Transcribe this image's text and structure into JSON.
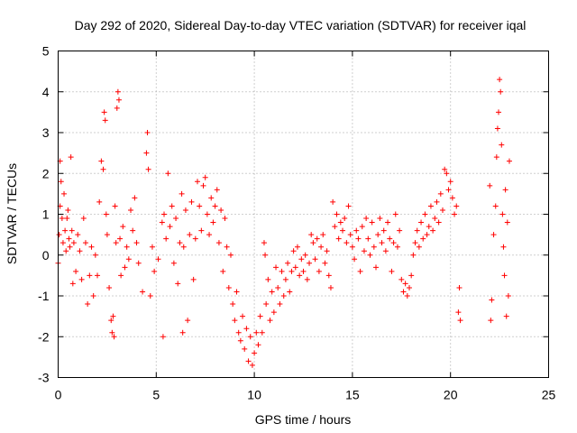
{
  "chart_data": {
    "type": "scatter",
    "title": "Day 292 of 2020, Sidereal Day-to-day VTEC variation (SDTVAR) for receiver iqal",
    "xlabel": "GPS time / hours",
    "ylabel": "SDTVAR / TECUs",
    "xlim": [
      0,
      25
    ],
    "ylim": [
      -3,
      5
    ],
    "xticks": [
      0,
      5,
      10,
      15,
      20,
      25
    ],
    "yticks": [
      -3,
      -2,
      -1,
      0,
      1,
      2,
      3,
      4,
      5
    ],
    "grid": true,
    "marker": "+",
    "color": "#ff0000",
    "series": [
      {
        "name": "SDTVAR",
        "points": [
          [
            0.0,
            -0.2
          ],
          [
            0.05,
            0.5
          ],
          [
            0.1,
            1.2
          ],
          [
            0.1,
            2.3
          ],
          [
            0.15,
            1.8
          ],
          [
            0.2,
            0.9
          ],
          [
            0.25,
            0.3
          ],
          [
            0.3,
            1.5
          ],
          [
            0.35,
            0.6
          ],
          [
            0.4,
            0.1
          ],
          [
            0.45,
            0.9
          ],
          [
            0.5,
            1.1
          ],
          [
            0.55,
            0.4
          ],
          [
            0.6,
            0.2
          ],
          [
            0.65,
            2.4
          ],
          [
            0.7,
            0.6
          ],
          [
            0.75,
            -0.7
          ],
          [
            0.8,
            0.3
          ],
          [
            0.9,
            -0.4
          ],
          [
            1.0,
            0.5
          ],
          [
            1.1,
            0.1
          ],
          [
            1.2,
            -0.6
          ],
          [
            1.3,
            0.9
          ],
          [
            1.4,
            0.3
          ],
          [
            1.5,
            -1.2
          ],
          [
            1.6,
            -0.5
          ],
          [
            1.7,
            0.2
          ],
          [
            1.8,
            -1.0
          ],
          [
            1.9,
            0.0
          ],
          [
            2.0,
            -0.5
          ],
          [
            2.1,
            1.3
          ],
          [
            2.2,
            2.3
          ],
          [
            2.3,
            2.1
          ],
          [
            2.35,
            3.5
          ],
          [
            2.4,
            3.3
          ],
          [
            2.45,
            1.0
          ],
          [
            2.5,
            0.5
          ],
          [
            2.6,
            -0.8
          ],
          [
            2.7,
            -1.6
          ],
          [
            2.75,
            -1.9
          ],
          [
            2.8,
            -1.5
          ],
          [
            2.85,
            -2.0
          ],
          [
            2.9,
            1.2
          ],
          [
            2.95,
            0.3
          ],
          [
            3.0,
            3.6
          ],
          [
            3.05,
            4.0
          ],
          [
            3.1,
            3.8
          ],
          [
            3.15,
            0.4
          ],
          [
            3.2,
            -0.5
          ],
          [
            3.3,
            0.7
          ],
          [
            3.4,
            -0.3
          ],
          [
            3.5,
            0.2
          ],
          [
            3.6,
            -0.1
          ],
          [
            3.7,
            1.1
          ],
          [
            3.8,
            0.6
          ],
          [
            3.9,
            1.4
          ],
          [
            4.0,
            0.3
          ],
          [
            4.1,
            -0.2
          ],
          [
            4.3,
            -0.9
          ],
          [
            4.5,
            2.5
          ],
          [
            4.55,
            3.0
          ],
          [
            4.6,
            2.1
          ],
          [
            4.7,
            -1.0
          ],
          [
            4.8,
            0.2
          ],
          [
            4.9,
            -0.4
          ],
          [
            5.1,
            -0.1
          ],
          [
            5.3,
            0.8
          ],
          [
            5.35,
            -2.0
          ],
          [
            5.4,
            1.0
          ],
          [
            5.5,
            0.4
          ],
          [
            5.6,
            2.0
          ],
          [
            5.7,
            0.7
          ],
          [
            5.8,
            1.2
          ],
          [
            5.9,
            -0.2
          ],
          [
            6.0,
            0.9
          ],
          [
            6.1,
            -0.7
          ],
          [
            6.2,
            0.3
          ],
          [
            6.3,
            1.5
          ],
          [
            6.35,
            -1.9
          ],
          [
            6.4,
            0.2
          ],
          [
            6.5,
            1.1
          ],
          [
            6.6,
            -1.6
          ],
          [
            6.7,
            0.5
          ],
          [
            6.8,
            1.3
          ],
          [
            6.9,
            -0.6
          ],
          [
            7.0,
            0.4
          ],
          [
            7.1,
            1.8
          ],
          [
            7.2,
            1.2
          ],
          [
            7.3,
            0.6
          ],
          [
            7.4,
            1.7
          ],
          [
            7.5,
            1.9
          ],
          [
            7.6,
            1.0
          ],
          [
            7.7,
            0.5
          ],
          [
            7.8,
            1.4
          ],
          [
            7.9,
            0.8
          ],
          [
            8.0,
            1.2
          ],
          [
            8.1,
            1.6
          ],
          [
            8.2,
            0.3
          ],
          [
            8.3,
            1.1
          ],
          [
            8.4,
            -0.4
          ],
          [
            8.5,
            0.9
          ],
          [
            8.6,
            0.2
          ],
          [
            8.7,
            -0.8
          ],
          [
            8.8,
            0.0
          ],
          [
            8.9,
            -1.2
          ],
          [
            9.0,
            -1.6
          ],
          [
            9.1,
            -0.9
          ],
          [
            9.2,
            -1.9
          ],
          [
            9.3,
            -2.1
          ],
          [
            9.4,
            -1.5
          ],
          [
            9.5,
            -2.3
          ],
          [
            9.6,
            -1.8
          ],
          [
            9.7,
            -2.6
          ],
          [
            9.8,
            -2.0
          ],
          [
            9.9,
            -2.7
          ],
          [
            10.0,
            -2.4
          ],
          [
            10.1,
            -1.9
          ],
          [
            10.2,
            -2.2
          ],
          [
            10.3,
            -1.5
          ],
          [
            10.4,
            -1.9
          ],
          [
            10.5,
            0.3
          ],
          [
            10.55,
            0.0
          ],
          [
            10.6,
            -1.2
          ],
          [
            10.7,
            -0.6
          ],
          [
            10.8,
            -1.6
          ],
          [
            10.9,
            -0.9
          ],
          [
            11.0,
            -1.4
          ],
          [
            11.1,
            -0.3
          ],
          [
            11.2,
            -0.8
          ],
          [
            11.3,
            -1.2
          ],
          [
            11.4,
            -0.4
          ],
          [
            11.5,
            -1.0
          ],
          [
            11.6,
            -0.6
          ],
          [
            11.7,
            -0.2
          ],
          [
            11.8,
            -0.9
          ],
          [
            11.9,
            -0.4
          ],
          [
            12.0,
            0.1
          ],
          [
            12.1,
            -0.3
          ],
          [
            12.2,
            0.2
          ],
          [
            12.3,
            -0.5
          ],
          [
            12.4,
            -0.1
          ],
          [
            12.5,
            -0.4
          ],
          [
            12.6,
            0.0
          ],
          [
            12.7,
            -0.6
          ],
          [
            12.8,
            -0.2
          ],
          [
            12.9,
            0.5
          ],
          [
            13.0,
            0.3
          ],
          [
            13.1,
            -0.1
          ],
          [
            13.2,
            0.4
          ],
          [
            13.3,
            -0.4
          ],
          [
            13.4,
            0.2
          ],
          [
            13.5,
            0.5
          ],
          [
            13.6,
            -0.2
          ],
          [
            13.7,
            0.1
          ],
          [
            13.8,
            -0.5
          ],
          [
            13.9,
            -0.8
          ],
          [
            14.0,
            1.3
          ],
          [
            14.1,
            0.7
          ],
          [
            14.2,
            1.0
          ],
          [
            14.3,
            0.4
          ],
          [
            14.4,
            0.8
          ],
          [
            14.5,
            0.6
          ],
          [
            14.6,
            0.9
          ],
          [
            14.7,
            0.3
          ],
          [
            14.8,
            1.2
          ],
          [
            14.9,
            0.5
          ],
          [
            15.0,
            0.2
          ],
          [
            15.1,
            -0.1
          ],
          [
            15.2,
            0.6
          ],
          [
            15.3,
            0.4
          ],
          [
            15.4,
            -0.4
          ],
          [
            15.5,
            0.7
          ],
          [
            15.6,
            0.1
          ],
          [
            15.7,
            0.9
          ],
          [
            15.8,
            0.4
          ],
          [
            15.9,
            0.0
          ],
          [
            16.0,
            0.8
          ],
          [
            16.1,
            0.2
          ],
          [
            16.2,
            -0.3
          ],
          [
            16.3,
            0.5
          ],
          [
            16.4,
            0.9
          ],
          [
            16.5,
            0.3
          ],
          [
            16.6,
            0.6
          ],
          [
            16.7,
            0.1
          ],
          [
            16.8,
            0.8
          ],
          [
            16.9,
            0.4
          ],
          [
            17.0,
            -0.4
          ],
          [
            17.1,
            0.3
          ],
          [
            17.2,
            1.0
          ],
          [
            17.3,
            0.2
          ],
          [
            17.4,
            0.6
          ],
          [
            17.5,
            -0.6
          ],
          [
            17.6,
            -0.9
          ],
          [
            17.7,
            -0.7
          ],
          [
            17.8,
            -1.0
          ],
          [
            17.9,
            -0.8
          ],
          [
            18.0,
            -0.5
          ],
          [
            18.1,
            0.0
          ],
          [
            18.2,
            0.3
          ],
          [
            18.3,
            0.6
          ],
          [
            18.4,
            0.2
          ],
          [
            18.5,
            0.8
          ],
          [
            18.6,
            0.4
          ],
          [
            18.7,
            1.0
          ],
          [
            18.8,
            0.5
          ],
          [
            18.9,
            0.7
          ],
          [
            19.0,
            1.2
          ],
          [
            19.1,
            0.6
          ],
          [
            19.2,
            0.9
          ],
          [
            19.3,
            1.3
          ],
          [
            19.4,
            0.8
          ],
          [
            19.5,
            1.5
          ],
          [
            19.6,
            1.1
          ],
          [
            19.7,
            2.1
          ],
          [
            19.8,
            2.0
          ],
          [
            19.9,
            1.6
          ],
          [
            20.0,
            1.8
          ],
          [
            20.1,
            1.4
          ],
          [
            20.2,
            1.0
          ],
          [
            20.3,
            1.2
          ],
          [
            20.4,
            -1.4
          ],
          [
            20.45,
            -0.8
          ],
          [
            20.5,
            -1.6
          ],
          [
            22.0,
            1.7
          ],
          [
            22.05,
            -1.6
          ],
          [
            22.1,
            -1.1
          ],
          [
            22.2,
            0.5
          ],
          [
            22.3,
            1.2
          ],
          [
            22.35,
            2.4
          ],
          [
            22.4,
            3.1
          ],
          [
            22.45,
            3.5
          ],
          [
            22.5,
            4.3
          ],
          [
            22.55,
            4.0
          ],
          [
            22.6,
            2.7
          ],
          [
            22.65,
            1.0
          ],
          [
            22.7,
            0.2
          ],
          [
            22.75,
            -0.5
          ],
          [
            22.8,
            1.6
          ],
          [
            22.85,
            -1.5
          ],
          [
            22.9,
            0.8
          ],
          [
            22.95,
            -1.0
          ],
          [
            23.0,
            2.3
          ]
        ]
      }
    ]
  }
}
